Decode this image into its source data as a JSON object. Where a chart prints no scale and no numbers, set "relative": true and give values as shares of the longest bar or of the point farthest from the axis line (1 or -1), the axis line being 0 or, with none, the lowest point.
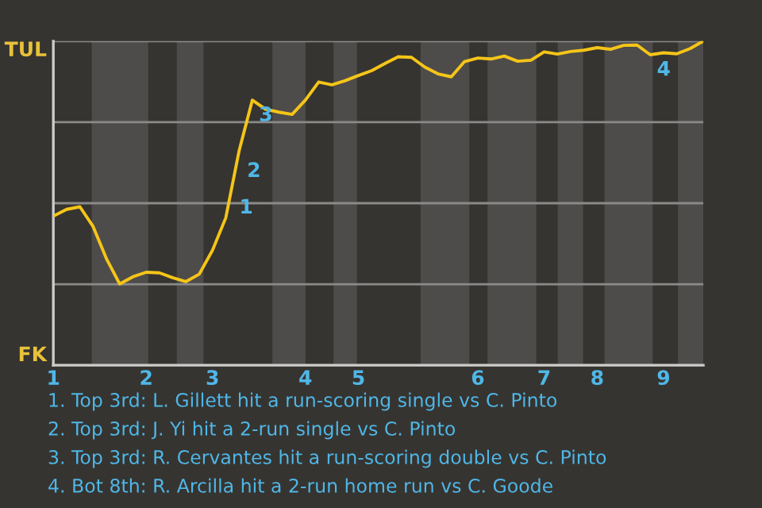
{
  "chart_data": {
    "type": "line",
    "relative": true,
    "categories": [
      "1",
      null,
      null,
      null,
      null,
      null,
      null,
      "2",
      null,
      null,
      null,
      null,
      "3",
      null,
      null,
      null,
      null,
      null,
      null,
      "4",
      null,
      null,
      null,
      "5",
      null,
      null,
      null,
      null,
      null,
      null,
      null,
      null,
      "6",
      null,
      null,
      null,
      null,
      "7",
      null,
      null,
      null,
      "8",
      null,
      null,
      null,
      null,
      "9",
      null,
      null,
      null
    ],
    "series": [
      {
        "color": "#f5c518",
        "values": [
          0.46,
          0.481,
          0.489,
          0.428,
          0.329,
          0.251,
          0.273,
          0.287,
          0.285,
          0.27,
          0.258,
          0.281,
          0.355,
          0.455,
          0.661,
          0.818,
          0.79,
          0.781,
          0.774,
          0.818,
          0.874,
          0.865,
          0.878,
          0.894,
          0.909,
          0.931,
          0.952,
          0.95,
          0.92,
          0.899,
          0.89,
          0.937,
          0.948,
          0.945,
          0.954,
          0.938,
          0.941,
          0.967,
          0.96,
          0.968,
          0.972,
          0.98,
          0.975,
          0.987,
          0.988,
          0.958,
          0.964,
          0.961,
          0.977,
          1
        ]
      }
    ],
    "grid": "y",
    "marker": "none",
    "line_style": "solid",
    "annotations": [
      "TUL",
      "FK",
      "1",
      "2",
      {
        "text": "3",
        "y": 0.818
      },
      {
        "text": "4",
        "y": 0.958
      },
      "1. Top 3rd: L. Gillett hit a run-scoring single vs C. Pinto",
      "2. Top 3rd: J. Yi hit a 2-run single vs C. Pinto",
      "3. Top 3rd: R. Cervantes hit a run-scoring double vs C. Pinto",
      "4. Bot 8th: R. Arcilla hit a 2-run home run vs C. Goode"
    ]
  }
}
